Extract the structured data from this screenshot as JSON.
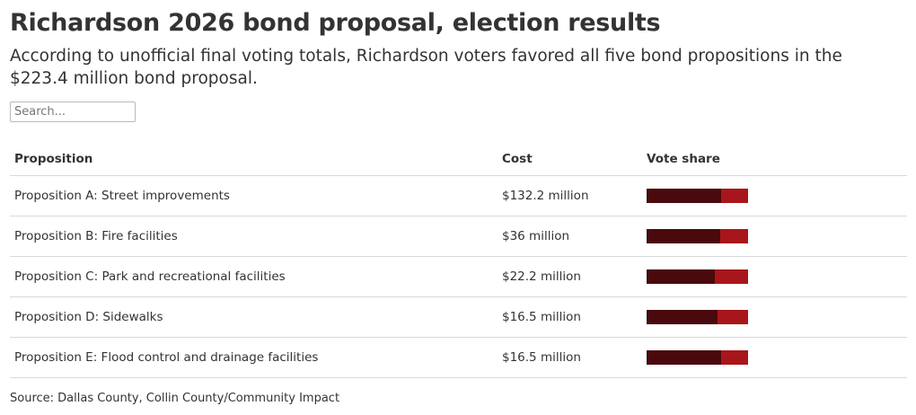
{
  "header": {
    "title": "Richardson 2026 bond proposal, election results",
    "subtitle": "According to unofficial final voting totals, Richardson voters favored all five bond propositions in the $223.4 million bond proposal."
  },
  "search": {
    "placeholder": "Search..."
  },
  "table": {
    "columns": [
      "Proposition",
      "Cost",
      "Vote share"
    ]
  },
  "chart_data": {
    "type": "table",
    "title": "Richardson 2026 bond proposal, election results",
    "columns": [
      "Proposition",
      "Cost",
      "Vote share"
    ],
    "rows": [
      {
        "proposition": "Proposition A: Street improvements",
        "cost": "$132.2 million",
        "vote_share_for": 0.73
      },
      {
        "proposition": "Proposition B: Fire facilities",
        "cost": "$36 million",
        "vote_share_for": 0.72
      },
      {
        "proposition": "Proposition C: Park and recreational facilities",
        "cost": "$22.2 million",
        "vote_share_for": 0.67
      },
      {
        "proposition": "Proposition D: Sidewalks",
        "cost": "$16.5 million",
        "vote_share_for": 0.7
      },
      {
        "proposition": "Proposition E: Flood control and drainage facilities",
        "cost": "$16.5 million",
        "vote_share_for": 0.73
      }
    ],
    "colors": {
      "for": "#4a0a0d",
      "against": "#a8161c"
    }
  },
  "footer": {
    "source": "Source: Dallas County, Collin County/Community Impact"
  }
}
